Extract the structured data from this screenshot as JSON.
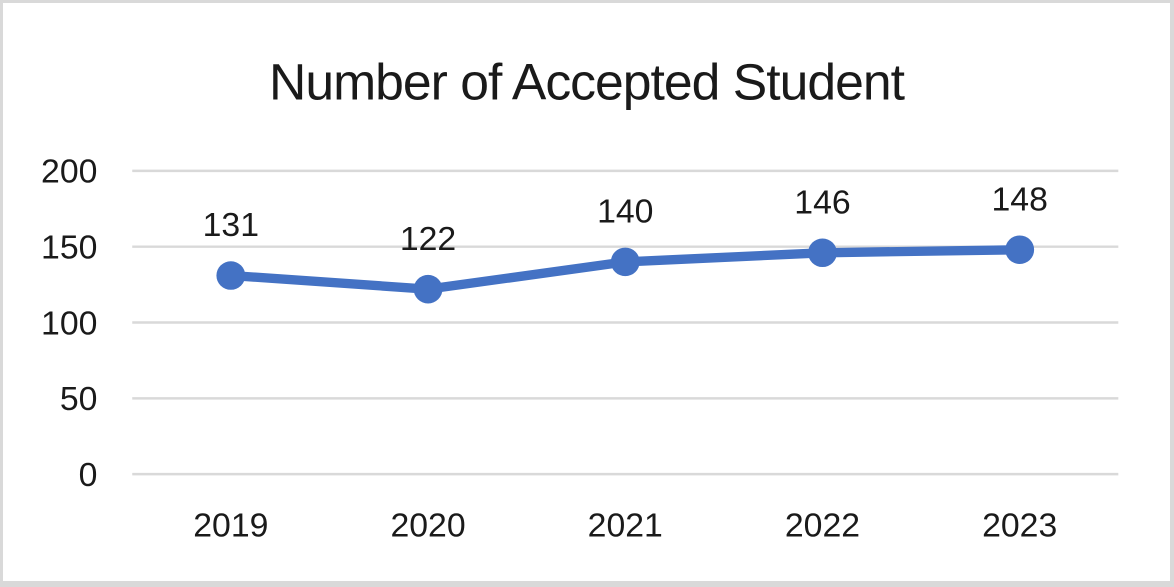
{
  "window": {
    "background": "#FFFFFF",
    "border_color": "#D9D9D9"
  },
  "chart_data": {
    "type": "line",
    "title": "Number of Accepted Student",
    "categories": [
      "2019",
      "2020",
      "2021",
      "2022",
      "2023"
    ],
    "values": [
      131,
      122,
      140,
      146,
      148
    ],
    "data_labels_shown": true,
    "xlabel": "",
    "ylabel": "",
    "y_ticks": [
      0,
      50,
      100,
      150,
      200
    ],
    "ylim": [
      0,
      200
    ],
    "grid": true,
    "legend_position": "none",
    "line_color": "#4472C4",
    "marker_color": "#4472C4",
    "gridline_color": "#D9D9D9",
    "text_color": "#1A1A1A"
  }
}
